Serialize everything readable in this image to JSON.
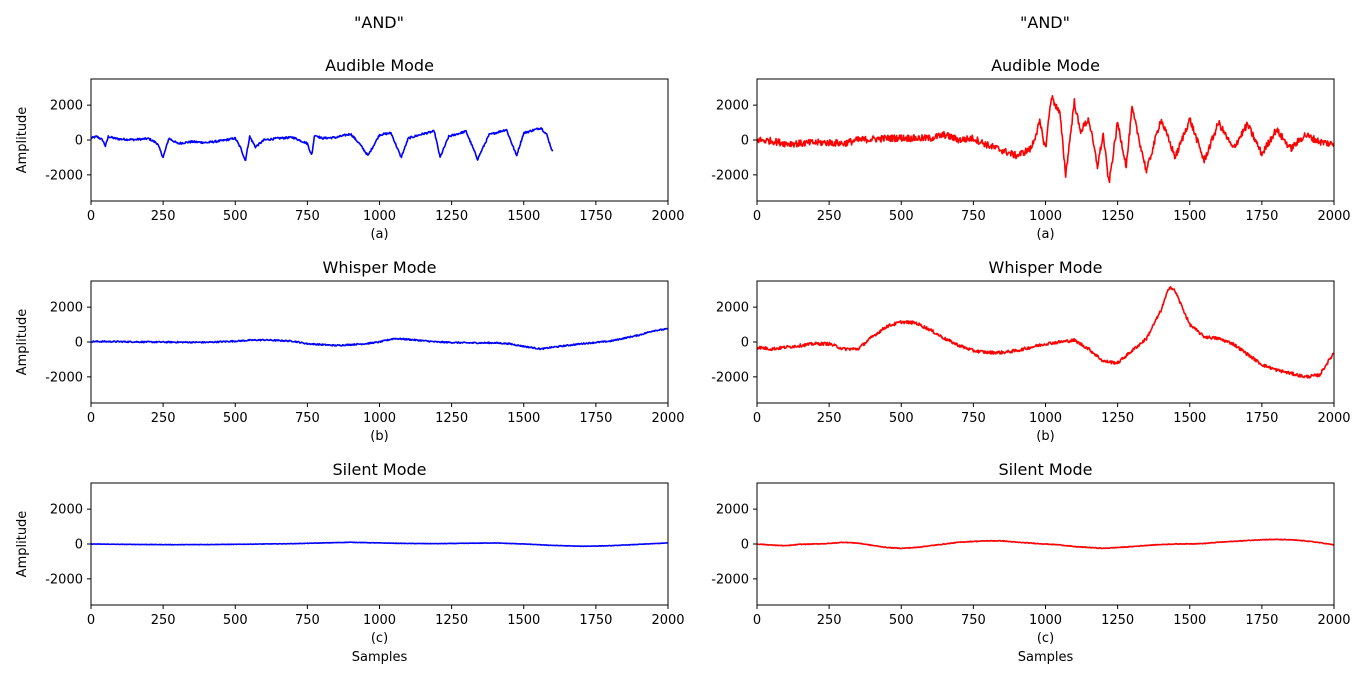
{
  "columns": [
    {
      "suptitle": "\"AND\"",
      "color": "#0000ff"
    },
    {
      "suptitle": "\"AND\"",
      "color": "#ff0000"
    }
  ],
  "chart_data": [
    {
      "type": "line",
      "title": "Audible Mode",
      "caption": "(a)",
      "ylabel": "Amplitude",
      "xlabel": "",
      "xlim": [
        0,
        2000
      ],
      "ylim": [
        -3500,
        3500
      ],
      "color": "#0000ff",
      "xticks": [
        0,
        250,
        500,
        750,
        1000,
        1250,
        1500,
        1750,
        2000
      ],
      "yticks": [
        -2000,
        0,
        2000
      ],
      "x": [
        0,
        20,
        40,
        50,
        60,
        80,
        100,
        150,
        200,
        230,
        250,
        270,
        300,
        350,
        400,
        450,
        500,
        520,
        535,
        550,
        570,
        600,
        650,
        700,
        750,
        765,
        775,
        800,
        850,
        900,
        930,
        960,
        1000,
        1040,
        1075,
        1100,
        1150,
        1190,
        1210,
        1240,
        1300,
        1340,
        1380,
        1440,
        1475,
        1500,
        1530,
        1560,
        1580,
        1600
      ],
      "y": [
        100,
        200,
        0,
        -350,
        200,
        100,
        50,
        20,
        80,
        -200,
        -1000,
        100,
        -200,
        -100,
        -150,
        -50,
        100,
        -500,
        -1200,
        200,
        -400,
        0,
        100,
        150,
        -200,
        -900,
        300,
        100,
        150,
        350,
        -200,
        -900,
        300,
        400,
        -1000,
        100,
        350,
        500,
        -1000,
        200,
        500,
        -1100,
        300,
        600,
        -900,
        400,
        550,
        700,
        300,
        -700
      ],
      "noise": 60
    },
    {
      "type": "line",
      "title": "Whisper Mode",
      "caption": "(b)",
      "ylabel": "Amplitude",
      "xlabel": "",
      "xlim": [
        0,
        2000
      ],
      "ylim": [
        -3500,
        3500
      ],
      "color": "#0000ff",
      "xticks": [
        0,
        250,
        500,
        750,
        1000,
        1250,
        1500,
        1750,
        2000
      ],
      "yticks": [
        -2000,
        0,
        2000
      ],
      "x": [
        0,
        100,
        200,
        300,
        400,
        500,
        550,
        600,
        700,
        750,
        800,
        850,
        900,
        950,
        1000,
        1050,
        1100,
        1200,
        1300,
        1400,
        1450,
        1500,
        1560,
        1600,
        1700,
        1800,
        1900,
        1950,
        2000
      ],
      "y": [
        30,
        20,
        0,
        -10,
        -20,
        50,
        100,
        120,
        50,
        -100,
        -150,
        -200,
        -150,
        -100,
        0,
        200,
        150,
        0,
        -50,
        -50,
        -100,
        -250,
        -400,
        -300,
        -100,
        50,
        400,
        650,
        750
      ],
      "noise": 40
    },
    {
      "type": "line",
      "title": "Silent Mode",
      "caption": "(c)",
      "ylabel": "Amplitude",
      "xlabel": "Samples",
      "xlim": [
        0,
        2000
      ],
      "ylim": [
        -3500,
        3500
      ],
      "color": "#0000ff",
      "xticks": [
        0,
        250,
        500,
        750,
        1000,
        1250,
        1500,
        1750,
        2000
      ],
      "yticks": [
        -2000,
        0,
        2000
      ],
      "x": [
        0,
        100,
        200,
        300,
        400,
        500,
        600,
        700,
        800,
        900,
        1000,
        1100,
        1200,
        1300,
        1400,
        1500,
        1600,
        1700,
        1800,
        1900,
        2000
      ],
      "y": [
        0,
        -20,
        -30,
        -40,
        -30,
        -20,
        0,
        20,
        60,
        100,
        60,
        30,
        20,
        40,
        60,
        0,
        -80,
        -130,
        -100,
        -20,
        60
      ],
      "noise": 12
    },
    {
      "type": "line",
      "title": "Audible Mode",
      "caption": "(a)",
      "ylabel": "",
      "xlabel": "",
      "xlim": [
        0,
        2000
      ],
      "ylim": [
        -3500,
        3500
      ],
      "color": "#ff0000",
      "xticks": [
        0,
        250,
        500,
        750,
        1000,
        1250,
        1500,
        1750,
        2000
      ],
      "yticks": [
        -2000,
        0,
        2000
      ],
      "x": [
        0,
        50,
        100,
        150,
        200,
        250,
        300,
        350,
        400,
        450,
        500,
        550,
        600,
        650,
        700,
        750,
        800,
        850,
        900,
        950,
        980,
        1000,
        1020,
        1050,
        1070,
        1100,
        1120,
        1150,
        1180,
        1200,
        1220,
        1250,
        1280,
        1300,
        1350,
        1400,
        1450,
        1500,
        1550,
        1600,
        1650,
        1700,
        1750,
        1800,
        1850,
        1900,
        1950,
        2000
      ],
      "y": [
        0,
        -50,
        -200,
        -200,
        -150,
        -150,
        -200,
        0,
        50,
        100,
        120,
        100,
        100,
        300,
        0,
        100,
        -300,
        -600,
        -900,
        -500,
        1000,
        -500,
        2500,
        1500,
        -2000,
        2200,
        500,
        1200,
        -1500,
        300,
        -2500,
        1000,
        -1500,
        1800,
        -1800,
        1200,
        -1000,
        1200,
        -1200,
        1000,
        -500,
        900,
        -800,
        600,
        -500,
        300,
        -100,
        -250
      ],
      "noise": 200
    },
    {
      "type": "line",
      "title": "Whisper Mode",
      "caption": "(b)",
      "ylabel": "",
      "xlabel": "",
      "xlim": [
        0,
        2000
      ],
      "ylim": [
        -3500,
        3500
      ],
      "color": "#ff0000",
      "xticks": [
        0,
        250,
        500,
        750,
        1000,
        1250,
        1500,
        1750,
        2000
      ],
      "yticks": [
        -2000,
        0,
        2000
      ],
      "x": [
        0,
        50,
        100,
        150,
        200,
        250,
        300,
        350,
        400,
        450,
        500,
        550,
        600,
        650,
        700,
        750,
        800,
        850,
        900,
        950,
        1000,
        1050,
        1100,
        1150,
        1200,
        1250,
        1300,
        1350,
        1400,
        1430,
        1450,
        1500,
        1550,
        1600,
        1650,
        1700,
        1750,
        1800,
        1850,
        1900,
        1950,
        2000
      ],
      "y": [
        -300,
        -400,
        -300,
        -200,
        -100,
        -100,
        -400,
        -400,
        300,
        900,
        1150,
        1100,
        700,
        200,
        -200,
        -500,
        -600,
        -600,
        -500,
        -300,
        -100,
        0,
        100,
        -400,
        -1100,
        -1200,
        -500,
        200,
        1800,
        3200,
        2900,
        1000,
        300,
        200,
        -100,
        -700,
        -1300,
        -1600,
        -1800,
        -2000,
        -1900,
        -600
      ],
      "noise": 90
    },
    {
      "type": "line",
      "title": "Silent Mode",
      "caption": "(c)",
      "ylabel": "",
      "xlabel": "Samples",
      "xlim": [
        0,
        2000
      ],
      "ylim": [
        -3500,
        3500
      ],
      "color": "#ff0000",
      "xticks": [
        0,
        250,
        500,
        750,
        1000,
        1250,
        1500,
        1750,
        2000
      ],
      "yticks": [
        -2000,
        0,
        2000
      ],
      "x": [
        0,
        50,
        100,
        150,
        200,
        250,
        300,
        350,
        400,
        450,
        500,
        550,
        600,
        650,
        700,
        750,
        800,
        850,
        900,
        950,
        1000,
        1050,
        1100,
        1150,
        1200,
        1250,
        1300,
        1350,
        1400,
        1450,
        1500,
        1550,
        1600,
        1650,
        1700,
        1750,
        1800,
        1850,
        1900,
        1950,
        2000
      ],
      "y": [
        0,
        -60,
        -100,
        -20,
        0,
        30,
        100,
        50,
        -80,
        -200,
        -250,
        -200,
        -100,
        0,
        100,
        150,
        180,
        180,
        100,
        50,
        0,
        -50,
        -150,
        -200,
        -250,
        -200,
        -150,
        -80,
        -30,
        0,
        10,
        30,
        100,
        150,
        200,
        250,
        260,
        240,
        180,
        80,
        -50
      ],
      "noise": 20
    }
  ]
}
